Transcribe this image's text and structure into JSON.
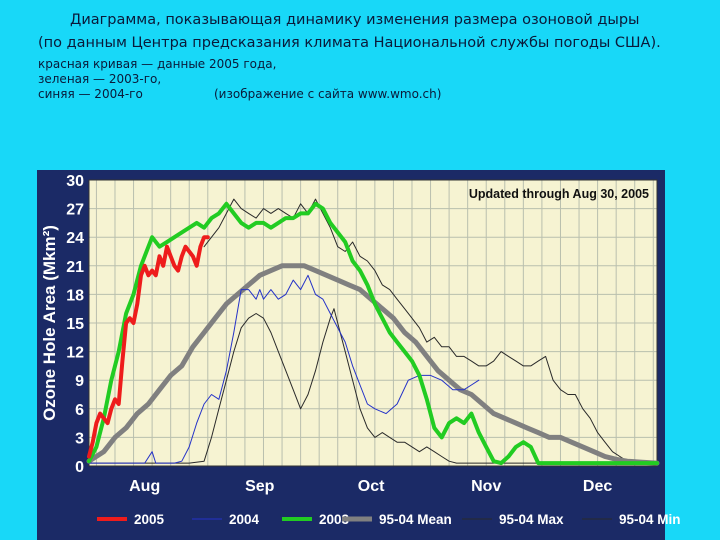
{
  "caption": {
    "line1": "Диаграмма, показывающая динамику изменения размера озоновой дыры",
    "line2": "(по данным Центра предсказания климата Национальной службы погоды США).",
    "line3": "красная кривая — данные 2005 года,",
    "line4": "зеленая — 2003-го,",
    "line5": "синяя — 2004-го",
    "source": "(изображение с сайта www.wmo.ch)"
  },
  "colors": {
    "background": "#18d8f8",
    "panel": "#1b2a66",
    "plot": "#f6f3d2",
    "grid": "#b9bfae",
    "s2005": "#ee1c1c",
    "s2004": "#2432c8",
    "s2003": "#22cc22",
    "mean": "#808080",
    "extreme": "#2a2a2a"
  },
  "chart_data": {
    "type": "line",
    "annotation": "Updated through Aug 30, 2005",
    "ylabel": "Ozone Hole Area (Mkm²)",
    "xlabel": "",
    "ylim": [
      0,
      30
    ],
    "yticks": [
      0,
      3,
      6,
      9,
      12,
      15,
      18,
      21,
      24,
      27,
      30
    ],
    "xlim": [
      213,
      366
    ],
    "xticks": [
      {
        "label": "Aug",
        "day": 228
      },
      {
        "label": "Sep",
        "day": 259
      },
      {
        "label": "Oct",
        "day": 289
      },
      {
        "label": "Nov",
        "day": 320
      },
      {
        "label": "Dec",
        "day": 350
      }
    ],
    "grid": true,
    "legend_position": "bottom",
    "series": [
      {
        "name": "2005",
        "style": "thick",
        "color": "#ee1c1c",
        "points": [
          [
            213,
            1
          ],
          [
            214,
            2.5
          ],
          [
            215,
            4.5
          ],
          [
            216,
            5.5
          ],
          [
            217,
            5
          ],
          [
            218,
            4.5
          ],
          [
            219,
            6
          ],
          [
            220,
            7
          ],
          [
            221,
            6.5
          ],
          [
            222,
            11
          ],
          [
            223,
            15
          ],
          [
            224,
            15.5
          ],
          [
            225,
            15
          ],
          [
            226,
            17
          ],
          [
            227,
            20
          ],
          [
            228,
            21
          ],
          [
            229,
            20
          ],
          [
            230,
            20.5
          ],
          [
            231,
            20
          ],
          [
            232,
            22
          ],
          [
            233,
            21
          ],
          [
            234,
            23
          ],
          [
            235,
            22
          ],
          [
            236,
            21
          ],
          [
            237,
            20.5
          ],
          [
            238,
            22
          ],
          [
            239,
            23
          ],
          [
            240,
            22.5
          ],
          [
            241,
            22
          ],
          [
            242,
            21
          ],
          [
            243,
            23
          ],
          [
            244,
            24
          ],
          [
            245,
            24
          ]
        ]
      },
      {
        "name": "2004",
        "style": "thin",
        "color": "#2432c8",
        "points": [
          [
            213,
            0.3
          ],
          [
            220,
            0.3
          ],
          [
            224,
            0.3
          ],
          [
            228,
            0.3
          ],
          [
            230,
            1.5
          ],
          [
            231,
            0.3
          ],
          [
            233,
            0.3
          ],
          [
            236,
            0.3
          ],
          [
            238,
            0.5
          ],
          [
            240,
            2
          ],
          [
            242,
            4.5
          ],
          [
            244,
            6.5
          ],
          [
            246,
            7.5
          ],
          [
            248,
            7
          ],
          [
            250,
            10
          ],
          [
            252,
            14
          ],
          [
            254,
            18.5
          ],
          [
            256,
            18.5
          ],
          [
            258,
            17.5
          ],
          [
            259,
            18.5
          ],
          [
            260,
            17.5
          ],
          [
            262,
            18.5
          ],
          [
            264,
            17.5
          ],
          [
            266,
            18
          ],
          [
            268,
            19.5
          ],
          [
            270,
            18.5
          ],
          [
            272,
            20
          ],
          [
            274,
            18
          ],
          [
            276,
            17.5
          ],
          [
            278,
            16
          ],
          [
            280,
            14.5
          ],
          [
            282,
            13
          ],
          [
            284,
            10.5
          ],
          [
            286,
            8.5
          ],
          [
            288,
            6.5
          ],
          [
            290,
            6
          ],
          [
            293,
            5.5
          ],
          [
            296,
            6.5
          ],
          [
            299,
            9
          ],
          [
            302,
            9.5
          ],
          [
            305,
            9.5
          ],
          [
            308,
            9
          ],
          [
            311,
            8
          ],
          [
            314,
            8
          ],
          [
            316,
            8.5
          ],
          [
            318,
            9
          ]
        ]
      },
      {
        "name": "2003",
        "style": "thick",
        "color": "#22cc22",
        "points": [
          [
            213,
            0.5
          ],
          [
            215,
            2
          ],
          [
            217,
            5
          ],
          [
            219,
            9
          ],
          [
            221,
            12
          ],
          [
            223,
            16
          ],
          [
            225,
            18
          ],
          [
            227,
            21
          ],
          [
            229,
            23
          ],
          [
            230,
            24
          ],
          [
            232,
            23
          ],
          [
            234,
            23.5
          ],
          [
            236,
            24
          ],
          [
            238,
            24.5
          ],
          [
            240,
            25
          ],
          [
            242,
            25.5
          ],
          [
            244,
            25
          ],
          [
            246,
            26
          ],
          [
            248,
            26.5
          ],
          [
            250,
            27.5
          ],
          [
            252,
            26.5
          ],
          [
            254,
            25.5
          ],
          [
            256,
            25
          ],
          [
            258,
            25.5
          ],
          [
            260,
            25.5
          ],
          [
            262,
            25
          ],
          [
            264,
            25.5
          ],
          [
            266,
            26
          ],
          [
            268,
            26
          ],
          [
            270,
            26.5
          ],
          [
            272,
            26.5
          ],
          [
            274,
            27.5
          ],
          [
            276,
            27
          ],
          [
            278,
            25.5
          ],
          [
            280,
            24.5
          ],
          [
            282,
            23.5
          ],
          [
            284,
            21.5
          ],
          [
            286,
            20.5
          ],
          [
            288,
            19
          ],
          [
            290,
            17
          ],
          [
            292,
            15.5
          ],
          [
            294,
            14
          ],
          [
            296,
            13
          ],
          [
            298,
            12
          ],
          [
            300,
            11
          ],
          [
            302,
            9.5
          ],
          [
            304,
            7
          ],
          [
            306,
            4
          ],
          [
            308,
            3
          ],
          [
            310,
            4.5
          ],
          [
            312,
            5
          ],
          [
            314,
            4.5
          ],
          [
            316,
            5.5
          ],
          [
            318,
            3.5
          ],
          [
            320,
            2
          ],
          [
            322,
            0.5
          ],
          [
            324,
            0.3
          ],
          [
            326,
            1
          ],
          [
            328,
            2
          ],
          [
            330,
            2.5
          ],
          [
            332,
            2
          ],
          [
            334,
            0.3
          ],
          [
            338,
            0.3
          ],
          [
            345,
            0.3
          ],
          [
            352,
            0.3
          ],
          [
            359,
            0.3
          ],
          [
            366,
            0.3
          ]
        ]
      },
      {
        "name": "95-04 Mean",
        "style": "thick",
        "color": "#808080",
        "points": [
          [
            213,
            0.5
          ],
          [
            217,
            1.5
          ],
          [
            220,
            3
          ],
          [
            223,
            4
          ],
          [
            226,
            5.5
          ],
          [
            229,
            6.5
          ],
          [
            232,
            8
          ],
          [
            235,
            9.5
          ],
          [
            238,
            10.5
          ],
          [
            241,
            12.5
          ],
          [
            244,
            14
          ],
          [
            247,
            15.5
          ],
          [
            250,
            17
          ],
          [
            253,
            18
          ],
          [
            256,
            19
          ],
          [
            259,
            20
          ],
          [
            262,
            20.5
          ],
          [
            265,
            21
          ],
          [
            268,
            21
          ],
          [
            271,
            21
          ],
          [
            274,
            20.5
          ],
          [
            277,
            20
          ],
          [
            280,
            19.5
          ],
          [
            283,
            19
          ],
          [
            286,
            18.5
          ],
          [
            289,
            17.5
          ],
          [
            292,
            16.5
          ],
          [
            295,
            15.5
          ],
          [
            298,
            14
          ],
          [
            301,
            13
          ],
          [
            304,
            11.5
          ],
          [
            307,
            10
          ],
          [
            310,
            9
          ],
          [
            313,
            8
          ],
          [
            316,
            7.5
          ],
          [
            319,
            6.5
          ],
          [
            322,
            5.5
          ],
          [
            325,
            5
          ],
          [
            328,
            4.5
          ],
          [
            331,
            4
          ],
          [
            334,
            3.5
          ],
          [
            337,
            3
          ],
          [
            340,
            3
          ],
          [
            343,
            2.5
          ],
          [
            346,
            2
          ],
          [
            349,
            1.5
          ],
          [
            352,
            1
          ],
          [
            355,
            0.7
          ],
          [
            358,
            0.5
          ],
          [
            362,
            0.4
          ],
          [
            366,
            0.3
          ]
        ]
      },
      {
        "name": "95-04 Max",
        "style": "thin",
        "color": "#2a2a2a",
        "points": [
          [
            244,
            23
          ],
          [
            246,
            24
          ],
          [
            248,
            25
          ],
          [
            250,
            26.5
          ],
          [
            252,
            28
          ],
          [
            254,
            27
          ],
          [
            256,
            26.5
          ],
          [
            258,
            26
          ],
          [
            260,
            27
          ],
          [
            262,
            26.5
          ],
          [
            264,
            27
          ],
          [
            266,
            26.5
          ],
          [
            268,
            26
          ],
          [
            270,
            27.5
          ],
          [
            272,
            26.5
          ],
          [
            274,
            28
          ],
          [
            276,
            26.5
          ],
          [
            278,
            25
          ],
          [
            280,
            23
          ],
          [
            282,
            22.5
          ],
          [
            284,
            23.5
          ],
          [
            286,
            22
          ],
          [
            288,
            21.5
          ],
          [
            290,
            20.5
          ],
          [
            292,
            19
          ],
          [
            294,
            18.5
          ],
          [
            296,
            17.5
          ],
          [
            298,
            16.5
          ],
          [
            300,
            15.5
          ],
          [
            302,
            14.5
          ],
          [
            304,
            13
          ],
          [
            306,
            13.5
          ],
          [
            308,
            12.5
          ],
          [
            310,
            12.5
          ],
          [
            312,
            11.5
          ],
          [
            314,
            11.5
          ],
          [
            316,
            11
          ],
          [
            318,
            10.5
          ],
          [
            320,
            10.5
          ],
          [
            322,
            11
          ],
          [
            324,
            12
          ],
          [
            326,
            11.5
          ],
          [
            328,
            11
          ],
          [
            330,
            10.5
          ],
          [
            332,
            10.5
          ],
          [
            334,
            11
          ],
          [
            336,
            11.5
          ],
          [
            338,
            9
          ],
          [
            340,
            8
          ],
          [
            342,
            7.5
          ],
          [
            344,
            7.5
          ],
          [
            346,
            6
          ],
          [
            348,
            5
          ],
          [
            350,
            3.5
          ],
          [
            352,
            2.5
          ],
          [
            354,
            1.5
          ],
          [
            356,
            1
          ],
          [
            358,
            0.5
          ],
          [
            360,
            0.3
          ]
        ]
      },
      {
        "name": "95-04 Min",
        "style": "thin",
        "color": "#2a2a2a",
        "points": [
          [
            213,
            0.3
          ],
          [
            225,
            0.3
          ],
          [
            240,
            0.3
          ],
          [
            244,
            0.5
          ],
          [
            246,
            3
          ],
          [
            248,
            6
          ],
          [
            250,
            9
          ],
          [
            252,
            12
          ],
          [
            254,
            14.5
          ],
          [
            256,
            15.5
          ],
          [
            258,
            16
          ],
          [
            260,
            15.5
          ],
          [
            262,
            14
          ],
          [
            264,
            12
          ],
          [
            266,
            10
          ],
          [
            268,
            8
          ],
          [
            270,
            6
          ],
          [
            272,
            7.5
          ],
          [
            274,
            10
          ],
          [
            276,
            13
          ],
          [
            278,
            15.5
          ],
          [
            279,
            16.5
          ],
          [
            280,
            15
          ],
          [
            282,
            12
          ],
          [
            284,
            9
          ],
          [
            286,
            6
          ],
          [
            288,
            4
          ],
          [
            290,
            3
          ],
          [
            292,
            3.5
          ],
          [
            294,
            3
          ],
          [
            296,
            2.5
          ],
          [
            298,
            2.5
          ],
          [
            300,
            2
          ],
          [
            302,
            1.5
          ],
          [
            304,
            2
          ],
          [
            306,
            1.5
          ],
          [
            308,
            1
          ],
          [
            310,
            0.5
          ],
          [
            312,
            0.3
          ],
          [
            320,
            0.3
          ],
          [
            340,
            0.3
          ],
          [
            366,
            0.3
          ]
        ]
      }
    ]
  }
}
